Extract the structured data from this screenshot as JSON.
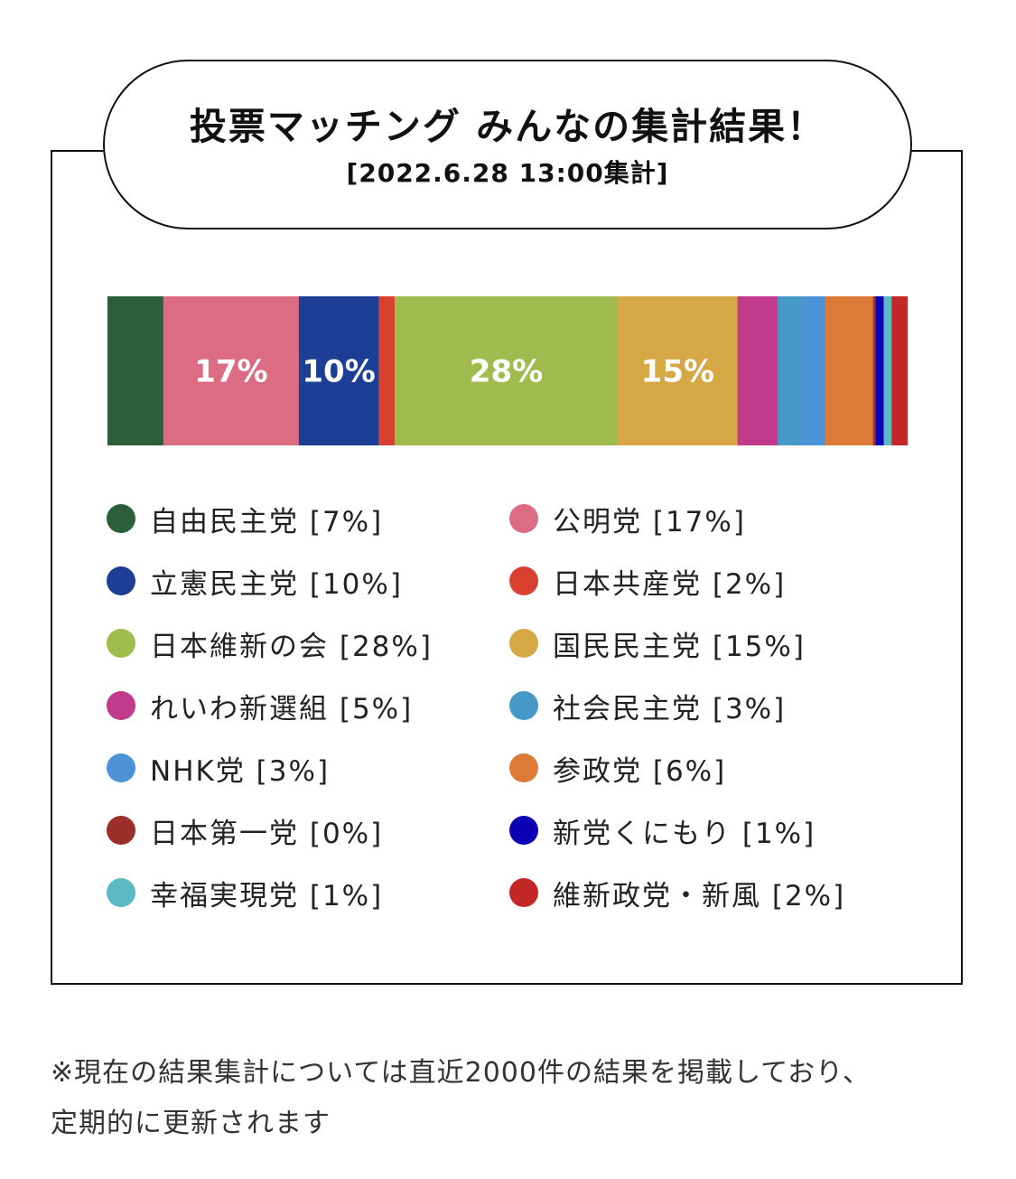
{
  "header": {
    "title": "投票マッチング みんなの集計結果！",
    "subtitle": "[2022.6.28 13:00集計]"
  },
  "chart_data": {
    "type": "bar",
    "orientation": "horizontal-stacked-100",
    "categories": [
      "自由民主党",
      "公明党",
      "立憲民主党",
      "日本共産党",
      "日本維新の会",
      "国民民主党",
      "れいわ新選組",
      "社会民主党",
      "NHK党",
      "参政党",
      "日本第一党",
      "新党くにもり",
      "幸福実現党",
      "維新政党・新風"
    ],
    "values": [
      7,
      17,
      10,
      2,
      28,
      15,
      5,
      3,
      3,
      6,
      0,
      1,
      1,
      2
    ],
    "unit": "%",
    "colors": [
      "#2a5f3a",
      "#db6c83",
      "#1c3e94",
      "#d8412f",
      "#a0bb4e",
      "#d6a745",
      "#c13b8a",
      "#4499c6",
      "#4b93d6",
      "#de7a38",
      "#9b2f2a",
      "#0c00b5",
      "#5cb9c4",
      "#c42826"
    ],
    "inline_labels": [
      "17%",
      "10%",
      "28%",
      "15%"
    ],
    "inline_label_indices": [
      1,
      2,
      4,
      5
    ]
  },
  "legend": {
    "items": [
      {
        "label": "自由民主党 [7%]",
        "color": "#2a5f3a"
      },
      {
        "label": "公明党 [17%]",
        "color": "#db6c83"
      },
      {
        "label": "立憲民主党 [10%]",
        "color": "#1c3e94"
      },
      {
        "label": "日本共産党 [2%]",
        "color": "#d8412f"
      },
      {
        "label": "日本維新の会 [28%]",
        "color": "#a0bb4e"
      },
      {
        "label": "国民民主党 [15%]",
        "color": "#d6a745"
      },
      {
        "label": "れいわ新選組 [5%]",
        "color": "#c13b8a"
      },
      {
        "label": "社会民主党 [3%]",
        "color": "#4499c6"
      },
      {
        "label": "NHK党 [3%]",
        "color": "#4b93d6"
      },
      {
        "label": "参政党 [6%]",
        "color": "#de7a38"
      },
      {
        "label": "日本第一党 [0%]",
        "color": "#9b2f2a"
      },
      {
        "label": "新党くにもり [1%]",
        "color": "#0c00b5"
      },
      {
        "label": "幸福実現党 [1%]",
        "color": "#5cb9c4"
      },
      {
        "label": "維新政党・新風 [2%]",
        "color": "#c42826"
      }
    ]
  },
  "footnote": {
    "line1": "※現在の結果集計については直近2000件の結果を掲載しており、",
    "line2": "定期的に更新されます"
  }
}
